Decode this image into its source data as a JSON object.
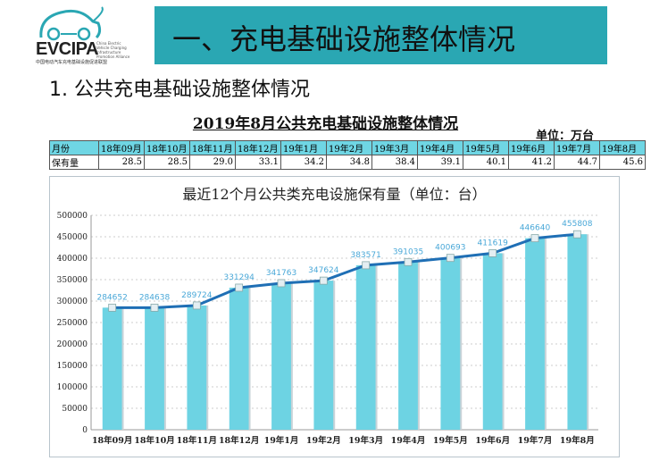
{
  "logo": {
    "name": "EVCIPA",
    "subtitle": "中国电动汽车充电基础设施促进联盟",
    "english": "China Electric Vehicle Charging Infrastructure Promotion Alliance"
  },
  "banner": {
    "title": "一、充电基础设施整体情况"
  },
  "section": {
    "title": "1. 公共充电基础设施整体情况"
  },
  "table": {
    "title": "2019年8月公共充电基础设施整体情况",
    "unit": "单位：万台",
    "row_header_month": "月份",
    "row_header_value": "保有量",
    "months": [
      "18年09月",
      "18年10月",
      "18年11月",
      "18年12月",
      "19年1月",
      "19年2月",
      "19年3月",
      "19年4月",
      "19年5月",
      "19年6月",
      "19年7月",
      "19年8月"
    ],
    "values": [
      "28.5",
      "28.5",
      "29.0",
      "33.1",
      "34.2",
      "34.8",
      "38.4",
      "39.1",
      "40.1",
      "41.2",
      "44.7",
      "45.6"
    ]
  },
  "chart_data": {
    "type": "bar+line",
    "title": "最近12个月公共类充电设施保有量（单位：台）",
    "categories": [
      "18年09月",
      "18年10月",
      "18年11月",
      "18年12月",
      "19年1月",
      "19年2月",
      "19年3月",
      "19年4月",
      "19年5月",
      "19年6月",
      "19年7月",
      "19年8月"
    ],
    "values": [
      284652,
      284638,
      289724,
      331294,
      341763,
      347624,
      383571,
      391035,
      400693,
      411619,
      446640,
      455808
    ],
    "ylim": [
      0,
      500000
    ],
    "yticks": [
      0,
      50000,
      100000,
      150000,
      200000,
      250000,
      300000,
      350000,
      400000,
      450000,
      500000
    ],
    "grid": true,
    "colors": {
      "bar": "#6dd3e3",
      "line": "#1f6fb5",
      "label": "#4aa8d8"
    }
  }
}
